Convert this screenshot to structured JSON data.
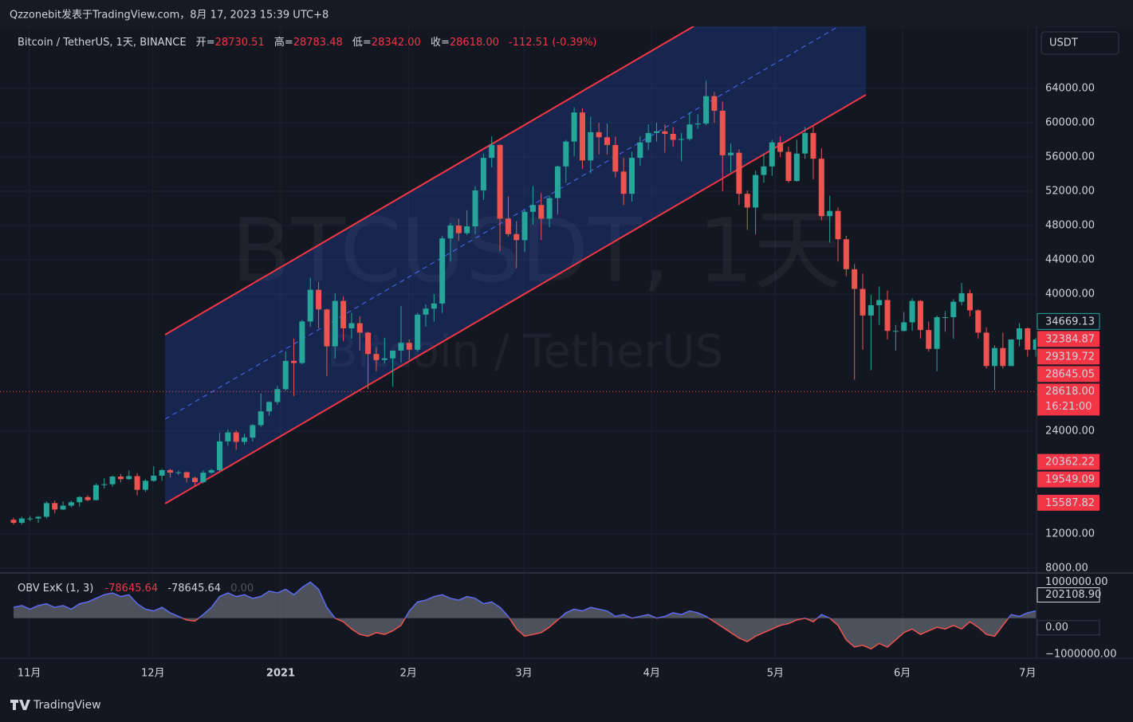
{
  "top_bar": "Qzzonebit发表于TradingView.com，8月 17, 2023 15:39 UTC+8",
  "footer": "TradingView",
  "currency": "USDT",
  "watermark": {
    "symbol": "BTCUSDT, 1天",
    "name": "Bitcoin / TetherUS"
  },
  "legend": {
    "symbol": "Bitcoin / TetherUS, 1天, BINANCE",
    "open_label": "开=",
    "open": "28730.51",
    "high_label": "高=",
    "high": "28783.48",
    "low_label": "低=",
    "low": "28342.00",
    "close_label": "收=",
    "close": "28618.00",
    "change": "-112.51 (-0.39%)"
  },
  "chart_data": [
    {
      "type": "candlestick",
      "up_color": "#26a69a",
      "down_color": "#ef5350",
      "ylim": [
        7535,
        71256
      ],
      "yticks": [
        {
          "value": 64000,
          "label": "64000.00"
        },
        {
          "value": 60000,
          "label": "60000.00"
        },
        {
          "value": 56000,
          "label": "56000.00"
        },
        {
          "value": 52000,
          "label": "52000.00"
        },
        {
          "value": 48000,
          "label": "48000.00"
        },
        {
          "value": 44000,
          "label": "44000.00"
        },
        {
          "value": 40000,
          "label": "40000.00"
        },
        {
          "value": 24000,
          "label": "24000.00"
        },
        {
          "value": 12000,
          "label": "12000.00"
        },
        {
          "value": 8000,
          "label": "8000.00"
        }
      ],
      "xticks": [
        {
          "value": 1.9,
          "label": "11月"
        },
        {
          "value": 16.9,
          "label": "12月"
        },
        {
          "value": 32.4,
          "label": "2021"
        },
        {
          "value": 47.9,
          "label": "2月"
        },
        {
          "value": 61.9,
          "label": "3月"
        },
        {
          "value": 77.4,
          "label": "4月"
        },
        {
          "value": 92.4,
          "label": "5月"
        },
        {
          "value": 107.8,
          "label": "6月"
        },
        {
          "value": 123,
          "label": "7月"
        }
      ],
      "close_label": {
        "value": 34669.13,
        "label": "34669.13"
      },
      "price_labels": [
        {
          "value": 32384.87,
          "label": "32384.87"
        },
        {
          "value": 29319.72,
          "label": "29319.72"
        },
        {
          "value": 28645.05,
          "label": "28645.05"
        },
        {
          "value": 20362.22,
          "label": "20362.22"
        },
        {
          "value": 19549.09,
          "label": "19549.09"
        },
        {
          "value": 15587.82,
          "label": "15587.82"
        }
      ],
      "last_price": {
        "value": 28618,
        "label": "28618.00",
        "countdown": "16:21:00"
      },
      "ohlc": [
        [
          13650,
          13900,
          13100,
          13300
        ],
        [
          13300,
          14000,
          13100,
          13800
        ],
        [
          13800,
          14100,
          13500,
          13800
        ],
        [
          13800,
          14100,
          13300,
          14000
        ],
        [
          14000,
          15800,
          13800,
          15600
        ],
        [
          15600,
          15900,
          14400,
          14850
        ],
        [
          14850,
          15800,
          14800,
          15300
        ],
        [
          15300,
          15900,
          15100,
          15700
        ],
        [
          15700,
          16400,
          15200,
          16300
        ],
        [
          16300,
          16500,
          15800,
          15950
        ],
        [
          15950,
          17900,
          15900,
          17700
        ],
        [
          17700,
          18500,
          17300,
          17800
        ],
        [
          17800,
          18800,
          17500,
          18700
        ],
        [
          18700,
          19000,
          18000,
          18400
        ],
        [
          18400,
          19400,
          18300,
          18750
        ],
        [
          18750,
          19100,
          16500,
          17150
        ],
        [
          17150,
          18400,
          16900,
          18200
        ],
        [
          18200,
          19900,
          18100,
          18800
        ],
        [
          18800,
          19600,
          18200,
          19450
        ],
        [
          19450,
          19600,
          18600,
          19150
        ],
        [
          19150,
          19400,
          18900,
          19200
        ],
        [
          19200,
          19300,
          18000,
          18550
        ],
        [
          18550,
          18700,
          17600,
          18050
        ],
        [
          18050,
          19400,
          17900,
          19150
        ],
        [
          19150,
          19600,
          19000,
          19450
        ],
        [
          19450,
          23800,
          19300,
          22800
        ],
        [
          22800,
          24200,
          22300,
          23850
        ],
        [
          23850,
          24100,
          21800,
          22750
        ],
        [
          22750,
          23700,
          22400,
          23250
        ],
        [
          23250,
          24800,
          22800,
          24700
        ],
        [
          24700,
          28400,
          24500,
          26300
        ],
        [
          26300,
          27500,
          25800,
          27400
        ],
        [
          27400,
          29300,
          27100,
          28900
        ],
        [
          28900,
          33300,
          28700,
          32200
        ],
        [
          32200,
          34800,
          28100,
          31950
        ],
        [
          31950,
          37000,
          31800,
          36800
        ],
        [
          36800,
          41900,
          36200,
          40500
        ],
        [
          40500,
          41400,
          36000,
          38200
        ],
        [
          38200,
          38300,
          30400,
          33900
        ],
        [
          33900,
          40100,
          32500,
          39200
        ],
        [
          39200,
          39700,
          34500,
          36000
        ],
        [
          36000,
          37800,
          34800,
          36600
        ],
        [
          36600,
          37400,
          33400,
          35500
        ],
        [
          35500,
          35600,
          28900,
          33000
        ],
        [
          33000,
          33800,
          31000,
          32300
        ],
        [
          32300,
          34900,
          31900,
          32500
        ],
        [
          32500,
          33000,
          29200,
          33400
        ],
        [
          33400,
          38600,
          32000,
          34300
        ],
        [
          34300,
          34700,
          32300,
          33500
        ],
        [
          33500,
          37800,
          33300,
          37600
        ],
        [
          37600,
          38800,
          36200,
          38300
        ],
        [
          38300,
          40000,
          36800,
          38900
        ],
        [
          38900,
          46800,
          37800,
          46500
        ],
        [
          46500,
          48300,
          43800,
          48000
        ],
        [
          48000,
          48800,
          46200,
          47100
        ],
        [
          47100,
          49800,
          46900,
          47900
        ],
        [
          47900,
          52600,
          47000,
          52100
        ],
        [
          52100,
          56400,
          51000,
          55900
        ],
        [
          55900,
          58400,
          54800,
          57400
        ],
        [
          57400,
          57500,
          45000,
          48800
        ],
        [
          48800,
          51400,
          46700,
          47000
        ],
        [
          47000,
          48500,
          43000,
          46300
        ],
        [
          46300,
          49800,
          44900,
          49600
        ],
        [
          49600,
          52600,
          48100,
          50400
        ],
        [
          50400,
          51800,
          46300,
          48800
        ],
        [
          48800,
          51500,
          47800,
          51200
        ],
        [
          51200,
          55000,
          49300,
          54900
        ],
        [
          54900,
          58000,
          53000,
          57800
        ],
        [
          57800,
          61800,
          56100,
          61200
        ],
        [
          61200,
          61700,
          54600,
          55600
        ],
        [
          55600,
          60700,
          54100,
          58900
        ],
        [
          58900,
          60000,
          56300,
          58300
        ],
        [
          58300,
          59900,
          56300,
          57400
        ],
        [
          57400,
          58400,
          53600,
          54300
        ],
        [
          54300,
          55900,
          50400,
          51700
        ],
        [
          51700,
          56600,
          50800,
          55900
        ],
        [
          55900,
          58400,
          55000,
          57700
        ],
        [
          57700,
          59800,
          56800,
          58800
        ],
        [
          58800,
          60000,
          57800,
          59000
        ],
        [
          59000,
          59800,
          56500,
          58700
        ],
        [
          58700,
          59500,
          57200,
          58000
        ],
        [
          58000,
          58800,
          55500,
          58100
        ],
        [
          58100,
          61200,
          57900,
          59800
        ],
        [
          59800,
          61000,
          59300,
          59900
        ],
        [
          59900,
          64900,
          59700,
          63100
        ],
        [
          63100,
          63600,
          60000,
          61400
        ],
        [
          61400,
          62500,
          52000,
          56200
        ],
        [
          56200,
          57600,
          54200,
          56500
        ],
        [
          56500,
          56900,
          50400,
          51700
        ],
        [
          51700,
          52100,
          47500,
          50100
        ],
        [
          50100,
          54400,
          47000,
          53900
        ],
        [
          53900,
          56400,
          53000,
          54900
        ],
        [
          54900,
          58000,
          53800,
          57700
        ],
        [
          57700,
          58400,
          56000,
          56600
        ],
        [
          56600,
          57200,
          53000,
          53200
        ],
        [
          53200,
          58000,
          53100,
          56400
        ],
        [
          56400,
          59500,
          55800,
          58800
        ],
        [
          58800,
          59600,
          53400,
          55800
        ],
        [
          55800,
          57000,
          48600,
          49100
        ],
        [
          49100,
          51500,
          46000,
          49700
        ],
        [
          49700,
          50100,
          43800,
          46400
        ],
        [
          46400,
          46800,
          42100,
          42900
        ],
        [
          42900,
          43500,
          30000,
          40600
        ],
        [
          40600,
          42400,
          33500,
          37500
        ],
        [
          37500,
          39900,
          31100,
          38700
        ],
        [
          38700,
          40900,
          36400,
          39300
        ],
        [
          39300,
          40400,
          34700,
          35700
        ],
        [
          35700,
          36400,
          33400,
          35700
        ],
        [
          35700,
          37900,
          35600,
          36700
        ],
        [
          36700,
          39500,
          35700,
          39200
        ],
        [
          39200,
          39300,
          34800,
          35800
        ],
        [
          35800,
          36800,
          33300,
          33600
        ],
        [
          33600,
          37500,
          31000,
          37300
        ],
        [
          37300,
          38000,
          35600,
          37300
        ],
        [
          37300,
          39400,
          34800,
          39100
        ],
        [
          39100,
          41300,
          38700,
          40100
        ],
        [
          40100,
          40500,
          37400,
          38100
        ],
        [
          38100,
          38200,
          34800,
          35500
        ],
        [
          35500,
          36100,
          31300,
          31600
        ],
        [
          31600,
          34000,
          28800,
          33700
        ],
        [
          33700,
          35500,
          31300,
          31600
        ],
        [
          31600,
          34700,
          31600,
          34700
        ],
        [
          34700,
          36600,
          33900,
          36000
        ],
        [
          36000,
          36100,
          32700,
          33500
        ],
        [
          33500,
          34900,
          32700,
          34700
        ]
      ]
    },
    {
      "type": "oscillator",
      "title": "OBV ExK (1, 3)",
      "value_a": "-78645.64",
      "value_b": "-78645.64",
      "value_c": "0.00",
      "above_color": "#5d6bf0",
      "below_color": "#ef5350",
      "ylim": [
        -1110000,
        1230000
      ],
      "yticks": [
        {
          "value": 1000000,
          "label": "1000000.00"
        },
        {
          "value": -1000000,
          "label": "−1000000.00"
        }
      ],
      "markers": [
        {
          "value": 202108.9,
          "label": "202108.90"
        },
        {
          "value": 0,
          "label": "0.00"
        }
      ],
      "values": [
        300000,
        350000,
        250000,
        350000,
        400000,
        300000,
        350000,
        250000,
        400000,
        450000,
        550000,
        650000,
        700000,
        600000,
        650000,
        400000,
        250000,
        200000,
        300000,
        150000,
        50000,
        -50000,
        -80000,
        100000,
        300000,
        600000,
        700000,
        600000,
        650000,
        550000,
        600000,
        750000,
        700000,
        800000,
        650000,
        850000,
        1000000,
        800000,
        300000,
        0,
        -100000,
        -300000,
        -450000,
        -500000,
        -400000,
        -450000,
        -350000,
        -200000,
        200000,
        450000,
        500000,
        600000,
        650000,
        550000,
        500000,
        600000,
        550000,
        400000,
        450000,
        300000,
        50000,
        -300000,
        -500000,
        -450000,
        -400000,
        -250000,
        -50000,
        150000,
        250000,
        200000,
        300000,
        250000,
        200000,
        50000,
        100000,
        0,
        50000,
        100000,
        0,
        50000,
        150000,
        100000,
        200000,
        150000,
        50000,
        -100000,
        -250000,
        -400000,
        -550000,
        -650000,
        -500000,
        -400000,
        -300000,
        -200000,
        -150000,
        -50000,
        0,
        -100000,
        100000,
        0,
        -200000,
        -600000,
        -800000,
        -750000,
        -850000,
        -700000,
        -800000,
        -600000,
        -400000,
        -300000,
        -450000,
        -350000,
        -250000,
        -300000,
        -200000,
        -300000,
        -100000,
        -250000,
        -450000,
        -500000,
        -200000,
        100000,
        50000,
        150000,
        200000
      ]
    }
  ]
}
